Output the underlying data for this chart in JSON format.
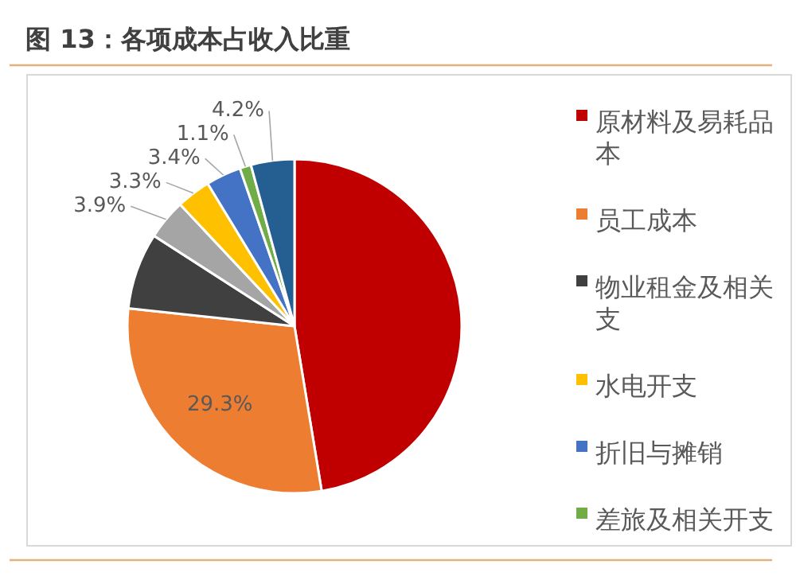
{
  "chart_data": {
    "type": "pie",
    "title": "图 13：各项成本占收入比重",
    "categories": [
      "原材料及易耗品本",
      "员工成本",
      "物业租金及相关支",
      null,
      "水电开支",
      "折旧与摊销",
      "差旅及相关开支",
      null
    ],
    "values": [
      47.4,
      29.3,
      7.4,
      3.9,
      3.3,
      3.4,
      1.1,
      4.2
    ],
    "value_labels": [
      null,
      "29.3%",
      null,
      "3.9%",
      "3.3%",
      "3.4%",
      "1.1%",
      "4.2%"
    ],
    "colors": [
      "#c00000",
      "#ed7d31",
      "#404040",
      "#a5a5a5",
      "#ffc000",
      "#4472c4",
      "#70ad47",
      "#255e91"
    ],
    "legend": "right"
  }
}
